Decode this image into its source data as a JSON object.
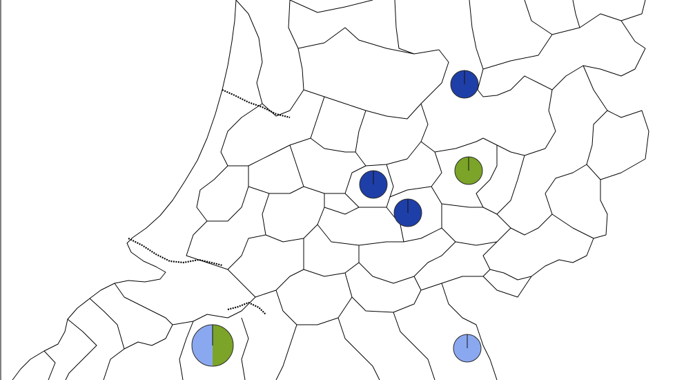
{
  "map": {
    "colors": {
      "dark_blue": "#1f3fa8",
      "light_blue": "#8aa8f0",
      "green": "#7ba428",
      "border": "#000000",
      "background": "#ffffff"
    },
    "pie_markers": [
      {
        "id": "north-east-site",
        "slices": [
          {
            "color_key": "dark_blue",
            "fraction": 1.0
          }
        ]
      },
      {
        "id": "central-west-site",
        "slices": [
          {
            "color_key": "dark_blue",
            "fraction": 1.0
          }
        ]
      },
      {
        "id": "central-south-site",
        "slices": [
          {
            "color_key": "dark_blue",
            "fraction": 1.0
          }
        ]
      },
      {
        "id": "central-east-site",
        "slices": [
          {
            "color_key": "green",
            "fraction": 1.0
          }
        ]
      },
      {
        "id": "south-east-site",
        "slices": [
          {
            "color_key": "light_blue",
            "fraction": 1.0
          }
        ]
      },
      {
        "id": "south-west-site",
        "slices": [
          {
            "color_key": "light_blue",
            "fraction": 0.5
          },
          {
            "color_key": "green",
            "fraction": 0.5
          }
        ]
      }
    ]
  }
}
